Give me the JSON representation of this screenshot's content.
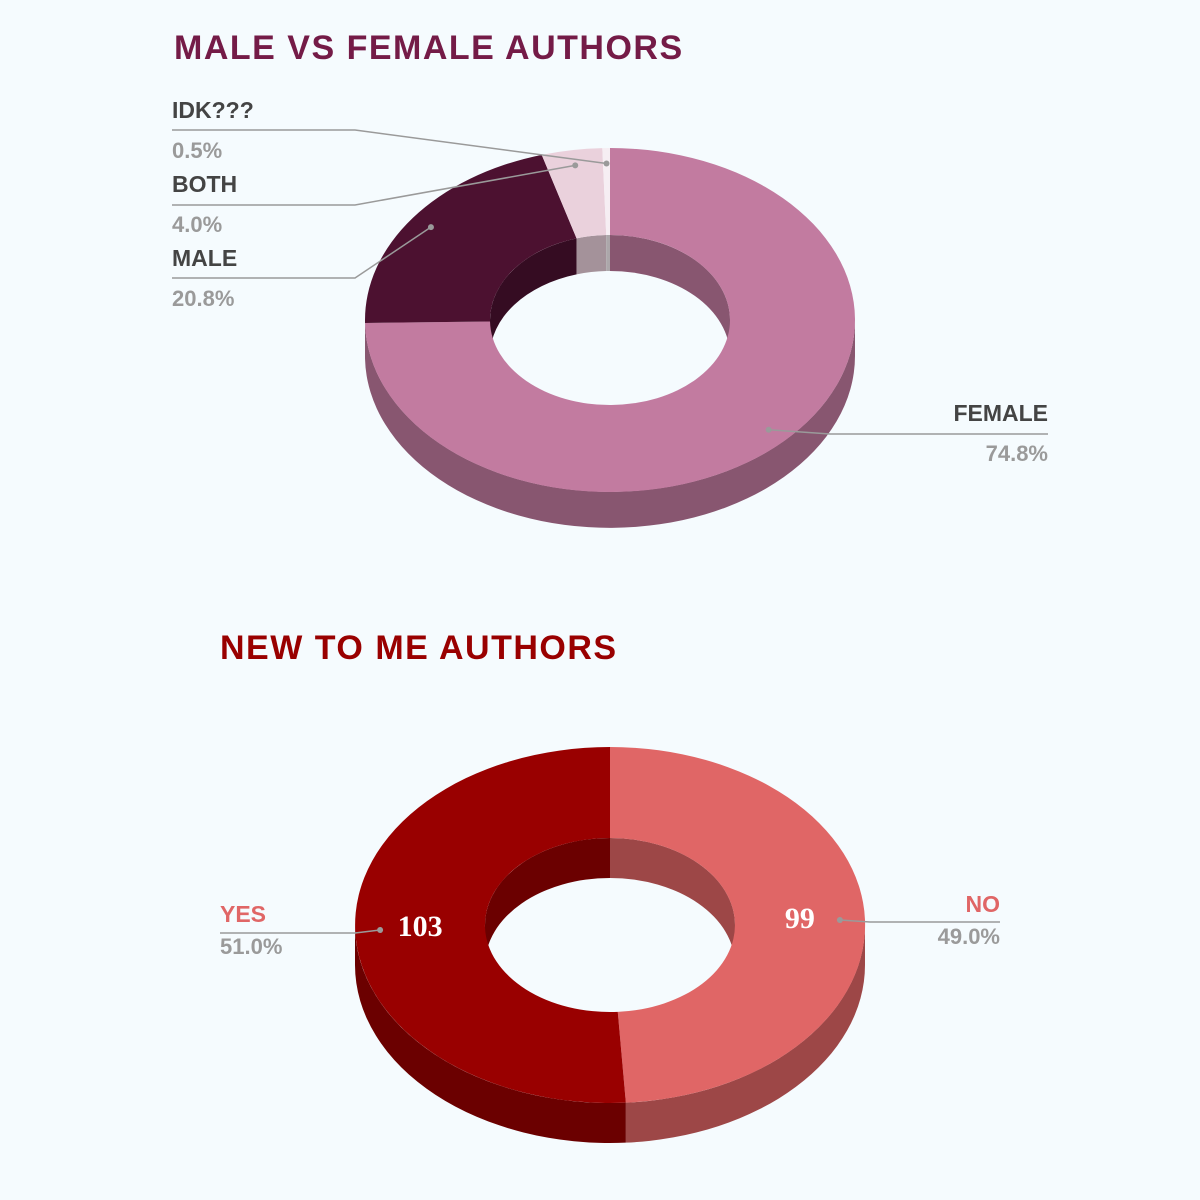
{
  "chart_data": [
    {
      "type": "pie",
      "title": "MALE VS FEMALE AUTHORS",
      "categories": [
        "FEMALE",
        "MALE",
        "BOTH",
        "IDK???"
      ],
      "values": [
        74.8,
        20.8,
        4.0,
        0.5
      ],
      "value_labels": [
        "74.8%",
        "20.8%",
        "4.0%",
        "0.5%"
      ],
      "colors": [
        "#c27ba0",
        "#4c1130",
        "#ead1dc",
        "#f6eef3"
      ],
      "title_color": "#741b47",
      "label_color": "#444444"
    },
    {
      "type": "pie",
      "title": "NEW TO ME AUTHORS",
      "categories": [
        "NO",
        "YES"
      ],
      "values": [
        99,
        103
      ],
      "percent_labels": [
        "49.0%",
        "51.0%"
      ],
      "colors": [
        "#e06666",
        "#990000"
      ],
      "title_color": "#990000",
      "label_color": "#e06666"
    }
  ]
}
